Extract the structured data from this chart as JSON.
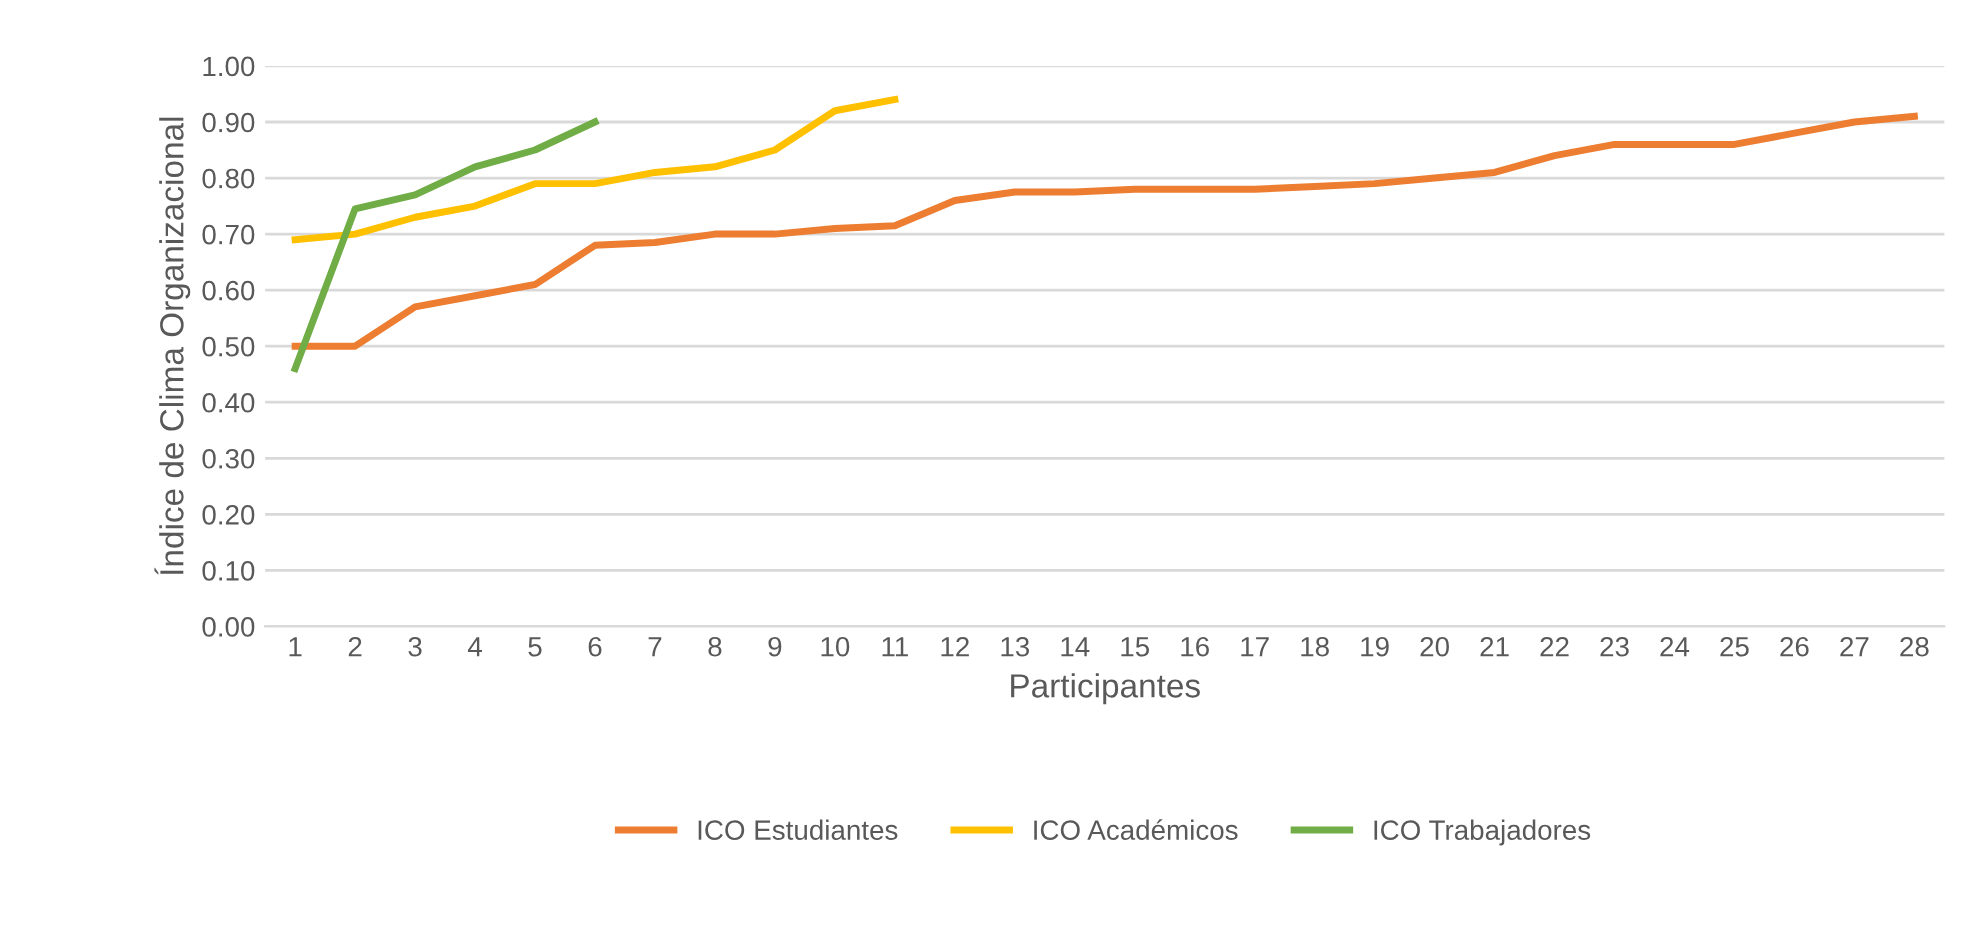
{
  "chart_data": {
    "type": "line",
    "xlabel": "Participantes",
    "ylabel": "Índice de Clima Organizacional",
    "categories": [
      "1",
      "2",
      "3",
      "4",
      "5",
      "6",
      "7",
      "8",
      "9",
      "10",
      "11",
      "12",
      "13",
      "14",
      "15",
      "16",
      "17",
      "18",
      "19",
      "20",
      "21",
      "22",
      "23",
      "24",
      "25",
      "26",
      "27",
      "28"
    ],
    "series": [
      {
        "name": "ICO Estudiantes",
        "color": "#ed7d31",
        "values": [
          0.5,
          0.5,
          0.57,
          0.59,
          0.61,
          0.68,
          0.685,
          0.7,
          0.7,
          0.71,
          0.715,
          0.76,
          0.775,
          0.775,
          0.78,
          0.78,
          0.78,
          0.785,
          0.79,
          0.8,
          0.81,
          0.84,
          0.86,
          0.86,
          0.86,
          0.88,
          0.9,
          0.91
        ]
      },
      {
        "name": "ICO Académicos",
        "color": "#ffc000",
        "values": [
          0.69,
          0.7,
          0.73,
          0.75,
          0.79,
          0.79,
          0.81,
          0.82,
          0.85,
          0.92,
          0.94,
          null,
          null,
          null,
          null,
          null,
          null,
          null,
          null,
          null,
          null,
          null,
          null,
          null,
          null,
          null,
          null,
          null
        ]
      },
      {
        "name": "ICO Trabajadores",
        "color": "#70ad47",
        "values": [
          0.46,
          0.745,
          0.77,
          0.82,
          0.85,
          0.9,
          null,
          null,
          null,
          null,
          null,
          null,
          null,
          null,
          null,
          null,
          null,
          null,
          null,
          null,
          null,
          null,
          null,
          null,
          null,
          null,
          null,
          null
        ]
      }
    ],
    "ylim": [
      0,
      1.0
    ],
    "yticks": [
      {
        "value": 0,
        "label": "0.00"
      },
      {
        "value": 0.1,
        "label": "0.10"
      },
      {
        "value": 0.2,
        "label": "0.20"
      },
      {
        "value": 0.3,
        "label": "0.30"
      },
      {
        "value": 0.4,
        "label": "0.40"
      },
      {
        "value": 0.5,
        "label": "0.50"
      },
      {
        "value": 0.6,
        "label": "0.60"
      },
      {
        "value": 0.7,
        "label": "0.70"
      },
      {
        "value": 0.8,
        "label": "0.80"
      },
      {
        "value": 0.9,
        "label": "0.90"
      },
      {
        "value": 1.0,
        "label": "1.00"
      }
    ],
    "grid": "y",
    "legend": "bottom",
    "marker": "none",
    "line_style": "solid"
  }
}
